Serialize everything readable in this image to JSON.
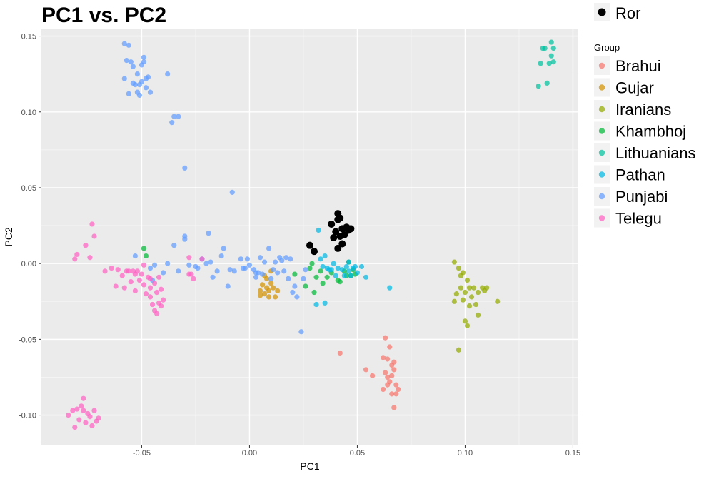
{
  "chart_data": {
    "type": "scatter",
    "title": "PC1 vs. PC2",
    "xlabel": "PC1",
    "ylabel": "PC2",
    "xlim": [
      -0.0965,
      0.1525
    ],
    "ylim": [
      -0.1195,
      0.1545
    ],
    "xticks": [
      -0.05,
      0.0,
      0.05,
      0.1,
      0.15
    ],
    "xtick_labels": [
      "-0.05",
      "0.00",
      "0.05",
      "0.10",
      "0.15"
    ],
    "yticks": [
      -0.1,
      -0.05,
      0.0,
      0.05,
      0.1,
      0.15
    ],
    "ytick_labels": [
      "-0.10",
      "-0.05",
      "0.00",
      "0.05",
      "0.10",
      "0.15"
    ],
    "grid": true,
    "legend_position": "right",
    "legend_title": "Group",
    "top_legend_label": "Ror",
    "colors": {
      "panel_bg": "#EBEBEB",
      "Brahui": "#F8766D",
      "Gujar": "#D39200",
      "Iranians": "#93AA00",
      "Khambhoj": "#00BA38",
      "Lithuanians": "#00C19F",
      "Pathan": "#00B9E3",
      "Punjabi": "#619CFF",
      "Ror": "#DB72FB",
      "Telegu": "#FF61C3",
      "highlight": "#000000"
    },
    "series": [
      {
        "name": "Brahui",
        "points": [
          [
            0.042,
            -0.059
          ],
          [
            0.054,
            -0.07
          ],
          [
            0.057,
            -0.074
          ],
          [
            0.062,
            -0.062
          ],
          [
            0.063,
            -0.049
          ],
          [
            0.064,
            -0.063
          ],
          [
            0.063,
            -0.072
          ],
          [
            0.064,
            -0.075
          ],
          [
            0.062,
            -0.083
          ],
          [
            0.066,
            -0.067
          ],
          [
            0.065,
            -0.078
          ],
          [
            0.067,
            -0.065
          ],
          [
            0.066,
            -0.086
          ],
          [
            0.067,
            -0.07
          ],
          [
            0.065,
            -0.055
          ],
          [
            0.068,
            -0.08
          ],
          [
            0.066,
            -0.074
          ],
          [
            0.069,
            -0.083
          ],
          [
            0.067,
            -0.095
          ],
          [
            0.068,
            -0.086
          ],
          [
            0.064,
            -0.08
          ]
        ]
      },
      {
        "name": "Gujar",
        "points": [
          [
            0.005,
            -0.018
          ],
          [
            0.006,
            -0.014
          ],
          [
            0.007,
            -0.02
          ],
          [
            0.008,
            -0.016
          ],
          [
            0.008,
            -0.01
          ],
          [
            0.009,
            -0.018
          ],
          [
            0.01,
            -0.013
          ],
          [
            0.011,
            -0.016
          ],
          [
            0.012,
            -0.022
          ],
          [
            0.013,
            -0.018
          ],
          [
            0.01,
            -0.005
          ],
          [
            0.007,
            -0.008
          ],
          [
            0.005,
            -0.021
          ],
          [
            0.009,
            -0.022
          ]
        ]
      },
      {
        "name": "Iranians",
        "points": [
          [
            0.095,
            0.001
          ],
          [
            0.096,
            -0.02
          ],
          [
            0.097,
            -0.003
          ],
          [
            0.097,
            -0.057
          ],
          [
            0.098,
            -0.016
          ],
          [
            0.099,
            -0.006
          ],
          [
            0.099,
            -0.024
          ],
          [
            0.1,
            -0.019
          ],
          [
            0.1,
            -0.038
          ],
          [
            0.101,
            -0.011
          ],
          [
            0.101,
            -0.041
          ],
          [
            0.102,
            -0.016
          ],
          [
            0.102,
            -0.028
          ],
          [
            0.103,
            -0.022
          ],
          [
            0.104,
            -0.016
          ],
          [
            0.105,
            -0.027
          ],
          [
            0.106,
            -0.019
          ],
          [
            0.106,
            -0.034
          ],
          [
            0.108,
            -0.016
          ],
          [
            0.109,
            -0.018
          ],
          [
            0.11,
            -0.016
          ],
          [
            0.115,
            -0.025
          ],
          [
            0.095,
            -0.025
          ],
          [
            0.098,
            -0.008
          ]
        ]
      },
      {
        "name": "Khambhoj",
        "points": [
          [
            -0.049,
            0.01
          ],
          [
            -0.048,
            0.005
          ],
          [
            0.021,
            -0.007
          ],
          [
            0.026,
            -0.015
          ],
          [
            0.028,
            -0.003
          ],
          [
            0.029,
            0.0
          ],
          [
            0.03,
            -0.019
          ],
          [
            0.031,
            -0.009
          ],
          [
            0.033,
            -0.005
          ],
          [
            0.034,
            -0.013
          ],
          [
            0.036,
            -0.009
          ],
          [
            0.038,
            -0.006
          ],
          [
            0.041,
            -0.011
          ],
          [
            0.042,
            -0.012
          ],
          [
            0.044,
            -0.005
          ],
          [
            0.045,
            -0.008
          ],
          [
            0.046,
            0.001
          ],
          [
            0.047,
            -0.008
          ],
          [
            0.048,
            -0.004
          ],
          [
            0.049,
            -0.007
          ]
        ]
      },
      {
        "name": "Lithuanians",
        "points": [
          [
            0.134,
            0.117
          ],
          [
            0.135,
            0.132
          ],
          [
            0.136,
            0.142
          ],
          [
            0.137,
            0.142
          ],
          [
            0.138,
            0.119
          ],
          [
            0.139,
            0.132
          ],
          [
            0.14,
            0.146
          ],
          [
            0.14,
            0.137
          ],
          [
            0.141,
            0.142
          ],
          [
            0.141,
            0.133
          ]
        ]
      },
      {
        "name": "Pathan",
        "points": [
          [
            0.032,
            0.022
          ],
          [
            0.034,
            -0.002
          ],
          [
            0.035,
            -0.026
          ],
          [
            0.035,
            0.005
          ],
          [
            0.036,
            -0.003
          ],
          [
            0.037,
            -0.004
          ],
          [
            0.038,
            -0.004
          ],
          [
            0.039,
            0.0
          ],
          [
            0.04,
            -0.008
          ],
          [
            0.041,
            -0.003
          ],
          [
            0.043,
            -0.004
          ],
          [
            0.044,
            -0.008
          ],
          [
            0.045,
            -0.002
          ],
          [
            0.046,
            -0.005
          ],
          [
            0.046,
            0.001
          ],
          [
            0.047,
            -0.008
          ],
          [
            0.048,
            -0.003
          ],
          [
            0.049,
            -0.002
          ],
          [
            0.05,
            -0.006
          ],
          [
            0.052,
            -0.002
          ],
          [
            0.054,
            -0.009
          ],
          [
            0.065,
            -0.016
          ],
          [
            0.031,
            -0.027
          ],
          [
            0.033,
            0.003
          ]
        ]
      },
      {
        "name": "Punjabi",
        "points": [
          [
            -0.058,
            0.145
          ],
          [
            -0.056,
            0.144
          ],
          [
            -0.057,
            0.134
          ],
          [
            -0.055,
            0.133
          ],
          [
            -0.058,
            0.122
          ],
          [
            -0.054,
            0.13
          ],
          [
            -0.054,
            0.119
          ],
          [
            -0.052,
            0.125
          ],
          [
            -0.051,
            0.118
          ],
          [
            -0.052,
            0.113
          ],
          [
            -0.05,
            0.12
          ],
          [
            -0.05,
            0.131
          ],
          [
            -0.049,
            0.133
          ],
          [
            -0.048,
            0.122
          ],
          [
            -0.047,
            0.123
          ],
          [
            -0.048,
            0.116
          ],
          [
            -0.051,
            0.111
          ],
          [
            -0.053,
            0.118
          ],
          [
            -0.046,
            0.113
          ],
          [
            -0.049,
            0.136
          ],
          [
            -0.056,
            0.112
          ],
          [
            -0.038,
            0.125
          ],
          [
            -0.036,
            0.093
          ],
          [
            -0.035,
            0.097
          ],
          [
            -0.033,
            0.097
          ],
          [
            -0.03,
            0.063
          ],
          [
            -0.008,
            0.047
          ],
          [
            -0.053,
            0.005
          ],
          [
            -0.046,
            -0.003
          ],
          [
            -0.045,
            -0.011
          ],
          [
            -0.044,
            -0.001
          ],
          [
            -0.04,
            -0.006
          ],
          [
            -0.038,
            0.0
          ],
          [
            -0.035,
            0.012
          ],
          [
            -0.033,
            -0.005
          ],
          [
            -0.03,
            0.018
          ],
          [
            -0.03,
            0.016
          ],
          [
            -0.028,
            -0.001
          ],
          [
            -0.025,
            -0.002
          ],
          [
            -0.024,
            -0.003
          ],
          [
            -0.022,
            0.003
          ],
          [
            -0.02,
            0.0
          ],
          [
            -0.019,
            0.02
          ],
          [
            -0.018,
            0.001
          ],
          [
            -0.017,
            -0.009
          ],
          [
            -0.015,
            -0.005
          ],
          [
            -0.013,
            0.005
          ],
          [
            -0.012,
            0.01
          ],
          [
            -0.01,
            -0.015
          ],
          [
            -0.009,
            -0.004
          ],
          [
            -0.007,
            -0.005
          ],
          [
            -0.004,
            0.003
          ],
          [
            -0.003,
            -0.003
          ],
          [
            -0.002,
            -0.003
          ],
          [
            0.0,
            -0.001
          ],
          [
            0.002,
            -0.004
          ],
          [
            0.003,
            -0.009
          ],
          [
            0.004,
            -0.006
          ],
          [
            0.005,
            0.004
          ],
          [
            0.006,
            -0.007
          ],
          [
            0.007,
            0.001
          ],
          [
            0.009,
            0.01
          ],
          [
            0.01,
            -0.01
          ],
          [
            0.011,
            -0.004
          ],
          [
            0.012,
            0.001
          ],
          [
            0.013,
            -0.006
          ],
          [
            0.014,
            0.004
          ],
          [
            0.015,
            0.002
          ],
          [
            0.016,
            -0.005
          ],
          [
            0.017,
            0.004
          ],
          [
            0.018,
            -0.01
          ],
          [
            0.019,
            0.003
          ],
          [
            0.02,
            -0.019
          ],
          [
            0.021,
            -0.015
          ],
          [
            0.022,
            -0.022
          ],
          [
            0.024,
            -0.045
          ],
          [
            0.025,
            -0.01
          ],
          [
            0.026,
            -0.004
          ],
          [
            0.003,
            -0.006
          ],
          [
            -0.001,
            0.003
          ]
        ]
      },
      {
        "name": "Telegu",
        "points": [
          [
            -0.084,
            -0.1
          ],
          [
            -0.082,
            -0.097
          ],
          [
            -0.081,
            -0.108
          ],
          [
            -0.08,
            -0.096
          ],
          [
            -0.079,
            -0.103
          ],
          [
            -0.078,
            -0.094
          ],
          [
            -0.077,
            -0.089
          ],
          [
            -0.076,
            -0.105
          ],
          [
            -0.075,
            -0.099
          ],
          [
            -0.074,
            -0.101
          ],
          [
            -0.073,
            -0.107
          ],
          [
            -0.072,
            -0.097
          ],
          [
            -0.071,
            -0.104
          ],
          [
            -0.07,
            -0.102
          ],
          [
            -0.077,
            -0.097
          ],
          [
            -0.081,
            0.003
          ],
          [
            -0.08,
            0.006
          ],
          [
            -0.076,
            0.012
          ],
          [
            -0.074,
            0.004
          ],
          [
            -0.073,
            0.026
          ],
          [
            -0.072,
            0.018
          ],
          [
            -0.067,
            -0.005
          ],
          [
            -0.064,
            -0.003
          ],
          [
            -0.062,
            -0.015
          ],
          [
            -0.061,
            -0.004
          ],
          [
            -0.059,
            -0.008
          ],
          [
            -0.058,
            -0.016
          ],
          [
            -0.057,
            -0.005
          ],
          [
            -0.056,
            -0.005
          ],
          [
            -0.055,
            -0.012
          ],
          [
            -0.054,
            -0.005
          ],
          [
            -0.053,
            -0.018
          ],
          [
            -0.052,
            -0.005
          ],
          [
            -0.051,
            -0.011
          ],
          [
            -0.05,
            -0.007
          ],
          [
            -0.049,
            -0.014
          ],
          [
            -0.048,
            -0.02
          ],
          [
            -0.047,
            -0.009
          ],
          [
            -0.046,
            -0.016
          ],
          [
            -0.046,
            -0.022
          ],
          [
            -0.045,
            -0.027
          ],
          [
            -0.044,
            -0.013
          ],
          [
            -0.044,
            -0.031
          ],
          [
            -0.043,
            -0.019
          ],
          [
            -0.043,
            -0.033
          ],
          [
            -0.042,
            -0.026
          ],
          [
            -0.042,
            -0.009
          ],
          [
            -0.041,
            -0.028
          ],
          [
            -0.041,
            -0.017
          ],
          [
            -0.04,
            -0.024
          ],
          [
            -0.049,
            -0.001
          ],
          [
            -0.053,
            -0.007
          ],
          [
            -0.046,
            -0.01
          ],
          [
            -0.028,
            -0.007
          ],
          [
            -0.027,
            -0.007
          ],
          [
            -0.028,
            0.004
          ],
          [
            -0.026,
            -0.01
          ],
          [
            -0.022,
            0.003
          ]
        ]
      }
    ],
    "highlight_points": [
      [
        0.028,
        0.012
      ],
      [
        0.03,
        0.008
      ],
      [
        0.038,
        0.026
      ],
      [
        0.039,
        0.017
      ],
      [
        0.04,
        0.021
      ],
      [
        0.041,
        0.033
      ],
      [
        0.041,
        0.01
      ],
      [
        0.042,
        0.018
      ],
      [
        0.042,
        0.03
      ],
      [
        0.043,
        0.023
      ],
      [
        0.043,
        0.013
      ],
      [
        0.044,
        0.019
      ],
      [
        0.045,
        0.024
      ],
      [
        0.046,
        0.022
      ],
      [
        0.047,
        0.023
      ],
      [
        0.041,
        0.029
      ]
    ]
  }
}
